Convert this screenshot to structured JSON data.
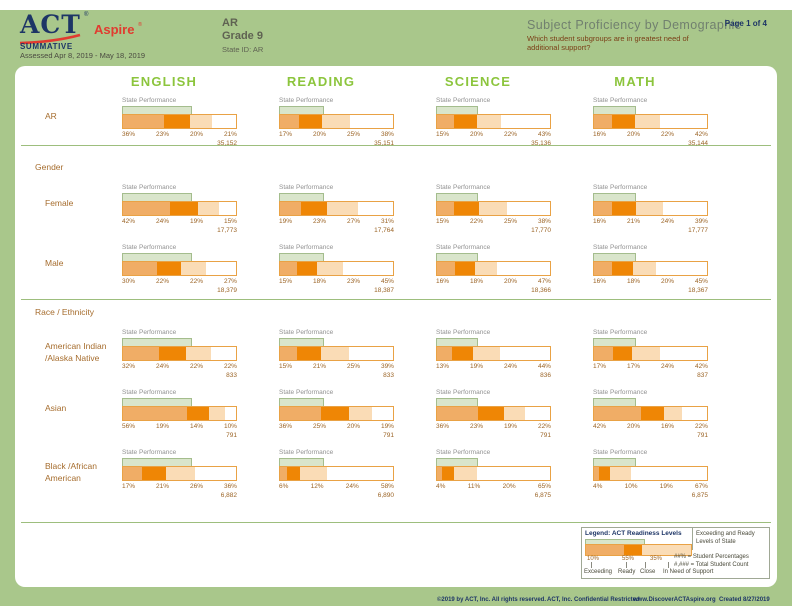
{
  "header": {
    "logo_act": "ACT",
    "logo_aspire": "Aspire",
    "logo_reg": "®",
    "program": "SUMMATIVE",
    "assessed": "Assessed Apr 8, 2019 - May 18, 2019",
    "org_name": "AR",
    "grade": "Grade 9",
    "state_id": "State ID: AR",
    "report_title": "Subject Proficiency by Demographic",
    "report_question": "Which student subgroups are in greatest need of additional support?",
    "page_label": "Page 1 of 4"
  },
  "chart_data": {
    "type": "bar",
    "subtype": "horizontal-stacked-grid",
    "subjects": [
      "ENGLISH",
      "READING",
      "SCIENCE",
      "MATH"
    ],
    "cell_header": "State Performance",
    "levels_order": [
      "In Need of Support",
      "Close",
      "Ready",
      "Exceeding"
    ],
    "state_reference_band_pct": [
      59,
      37,
      35,
      36
    ],
    "groups": [
      {
        "label": "",
        "rows": [
          {
            "label_lines": [
              "AR"
            ],
            "cells": [
              {
                "pcts": [
                  "36%",
                  "23%",
                  "20%",
                  "21%"
                ],
                "count": "35,152"
              },
              {
                "pcts": [
                  "17%",
                  "20%",
                  "25%",
                  "38%"
                ],
                "count": "35,151"
              },
              {
                "pcts": [
                  "15%",
                  "20%",
                  "22%",
                  "43%"
                ],
                "count": "35,136"
              },
              {
                "pcts": [
                  "16%",
                  "20%",
                  "22%",
                  "42%"
                ],
                "count": "35,144"
              }
            ]
          }
        ]
      },
      {
        "label": "Gender",
        "rows": [
          {
            "label_lines": [
              "Female"
            ],
            "cells": [
              {
                "pcts": [
                  "42%",
                  "24%",
                  "19%",
                  "15%"
                ],
                "count": "17,773"
              },
              {
                "pcts": [
                  "19%",
                  "23%",
                  "27%",
                  "31%"
                ],
                "count": "17,764"
              },
              {
                "pcts": [
                  "15%",
                  "22%",
                  "25%",
                  "38%"
                ],
                "count": "17,770"
              },
              {
                "pcts": [
                  "16%",
                  "21%",
                  "24%",
                  "39%"
                ],
                "count": "17,777"
              }
            ]
          },
          {
            "label_lines": [
              "Male"
            ],
            "cells": [
              {
                "pcts": [
                  "30%",
                  "22%",
                  "22%",
                  "27%"
                ],
                "count": "18,379"
              },
              {
                "pcts": [
                  "15%",
                  "18%",
                  "23%",
                  "45%"
                ],
                "count": "18,387"
              },
              {
                "pcts": [
                  "16%",
                  "18%",
                  "20%",
                  "47%"
                ],
                "count": "18,366"
              },
              {
                "pcts": [
                  "16%",
                  "18%",
                  "20%",
                  "45%"
                ],
                "count": "18,367"
              }
            ]
          }
        ]
      },
      {
        "label": "Race / Ethnicity",
        "rows": [
          {
            "label_lines": [
              "American Indian",
              "/Alaska Native"
            ],
            "cells": [
              {
                "pcts": [
                  "32%",
                  "24%",
                  "22%",
                  "22%"
                ],
                "count": "833"
              },
              {
                "pcts": [
                  "15%",
                  "21%",
                  "25%",
                  "39%"
                ],
                "count": "833"
              },
              {
                "pcts": [
                  "13%",
                  "19%",
                  "24%",
                  "44%"
                ],
                "count": "836"
              },
              {
                "pcts": [
                  "17%",
                  "17%",
                  "24%",
                  "42%"
                ],
                "count": "837"
              }
            ]
          },
          {
            "label_lines": [
              "Asian"
            ],
            "cells": [
              {
                "pcts": [
                  "56%",
                  "19%",
                  "14%",
                  "10%"
                ],
                "count": "791"
              },
              {
                "pcts": [
                  "36%",
                  "25%",
                  "20%",
                  "19%"
                ],
                "count": "791"
              },
              {
                "pcts": [
                  "36%",
                  "23%",
                  "19%",
                  "22%"
                ],
                "count": "791"
              },
              {
                "pcts": [
                  "42%",
                  "20%",
                  "16%",
                  "22%"
                ],
                "count": "791"
              }
            ]
          },
          {
            "label_lines": [
              "Black /African",
              "American"
            ],
            "cells": [
              {
                "pcts": [
                  "17%",
                  "21%",
                  "26%",
                  "36%"
                ],
                "count": "6,882"
              },
              {
                "pcts": [
                  "6%",
                  "12%",
                  "24%",
                  "58%"
                ],
                "count": "6,890"
              },
              {
                "pcts": [
                  "4%",
                  "11%",
                  "20%",
                  "65%"
                ],
                "count": "6,875"
              },
              {
                "pcts": [
                  "4%",
                  "10%",
                  "19%",
                  "67%"
                ],
                "count": "6,875"
              }
            ]
          }
        ]
      }
    ]
  },
  "legend": {
    "title": "Legend: ACT Readiness Levels",
    "band_label": "Exceeding and Ready Levels of State",
    "sample_pcts": [
      "10%",
      "55%",
      "35%"
    ],
    "levels": [
      "Exceeding",
      "Ready",
      "Close",
      "In Need of Support"
    ],
    "pct_note": "##% = Student Percentages",
    "count_note": "#,### = Total Student Count"
  },
  "footer": {
    "copyright": "©2019 by ACT, Inc. All rights reserved.",
    "confidential": "ACT, Inc. Confidential Restricted",
    "website": "www.DiscoverACTAspire.org",
    "created": "Created 8/27/2019"
  },
  "colors": {
    "page_green": "#a9c78b",
    "subject_lime": "#8cc53d",
    "navy": "#1d3566",
    "logo_red": "#e13b30",
    "label_brown": "#a66d2e",
    "seg_in_need_of_support": "#f0ad66",
    "seg_close": "#ef8605",
    "seg_ready": "#fadcb6",
    "seg_exceeding": "#ffffff",
    "bar_border": "#e9a245",
    "state_band_fill": "#d9e5cb",
    "separator_green": "#9dbe7d"
  }
}
